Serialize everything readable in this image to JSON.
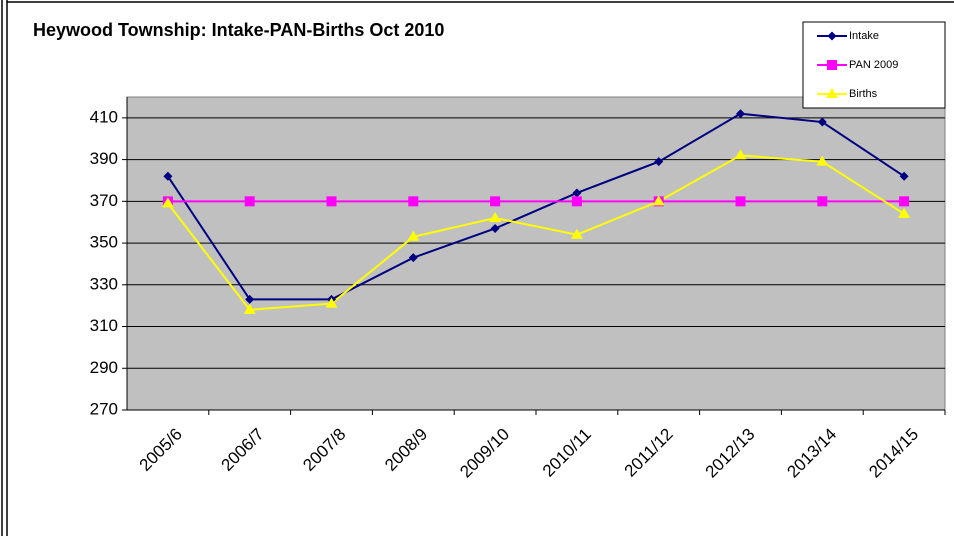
{
  "chart_data": {
    "type": "line",
    "title": "Heywood Township: Intake-PAN-Births Oct 2010",
    "categories": [
      "2005/6",
      "2006/7",
      "2007/8",
      "2008/9",
      "2009/10",
      "2010/11",
      "2011/12",
      "2012/13",
      "2013/14",
      "2014/15"
    ],
    "series": [
      {
        "name": "Intake",
        "color": "#000080",
        "marker": "diamond",
        "values": [
          382,
          323,
          323,
          343,
          357,
          374,
          389,
          412,
          408,
          382
        ]
      },
      {
        "name": "PAN 2009",
        "color": "#ff00ff",
        "marker": "square",
        "values": [
          370,
          370,
          370,
          370,
          370,
          370,
          370,
          370,
          370,
          370
        ]
      },
      {
        "name": "Births",
        "color": "#ffff00",
        "marker": "triangle",
        "values": [
          369,
          318,
          321,
          353,
          362,
          354,
          370,
          392,
          389,
          364
        ]
      }
    ],
    "ylim": [
      270,
      420
    ],
    "yticks": [
      270,
      290,
      310,
      330,
      350,
      370,
      390,
      410
    ],
    "grid": true,
    "legend": "top-right"
  }
}
